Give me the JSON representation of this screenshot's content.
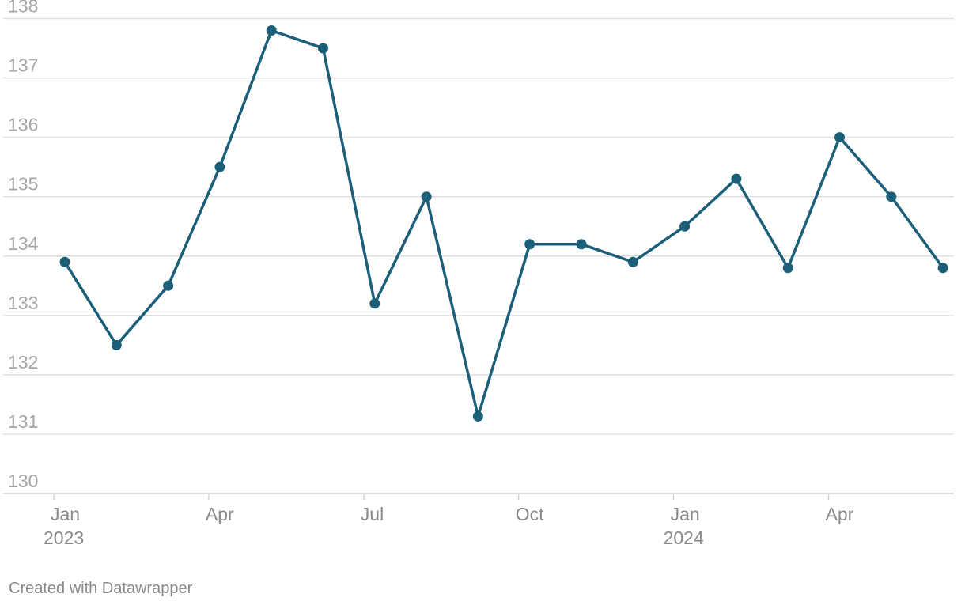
{
  "chart_data": {
    "type": "line",
    "title": "",
    "xlabel": "",
    "ylabel": "",
    "x": [
      "2023-01",
      "2023-02",
      "2023-03",
      "2023-04",
      "2023-05",
      "2023-06",
      "2023-07",
      "2023-08",
      "2023-09",
      "2023-10",
      "2023-11",
      "2023-12",
      "2024-01",
      "2024-02",
      "2024-03",
      "2024-04",
      "2024-05",
      "2024-06"
    ],
    "values": [
      133.9,
      132.5,
      133.5,
      135.5,
      137.8,
      137.5,
      133.2,
      135.0,
      131.3,
      134.2,
      134.2,
      133.9,
      134.5,
      135.3,
      133.8,
      136.0,
      135.0,
      133.8
    ],
    "ylim": [
      130,
      138
    ],
    "y_ticks": [
      130,
      131,
      132,
      133,
      134,
      135,
      136,
      137,
      138
    ],
    "x_ticks": [
      {
        "month": "Jan",
        "year": "2023",
        "date": "2023-01"
      },
      {
        "month": "Apr",
        "year": "",
        "date": "2023-04"
      },
      {
        "month": "Jul",
        "year": "",
        "date": "2023-07"
      },
      {
        "month": "Oct",
        "year": "",
        "date": "2023-10"
      },
      {
        "month": "Jan",
        "year": "2024",
        "date": "2024-01"
      },
      {
        "month": "Apr",
        "year": "",
        "date": "2024-04"
      }
    ],
    "grid": true,
    "line_color": "#1b5f79"
  },
  "footer": {
    "credit": "Created with Datawrapper"
  }
}
